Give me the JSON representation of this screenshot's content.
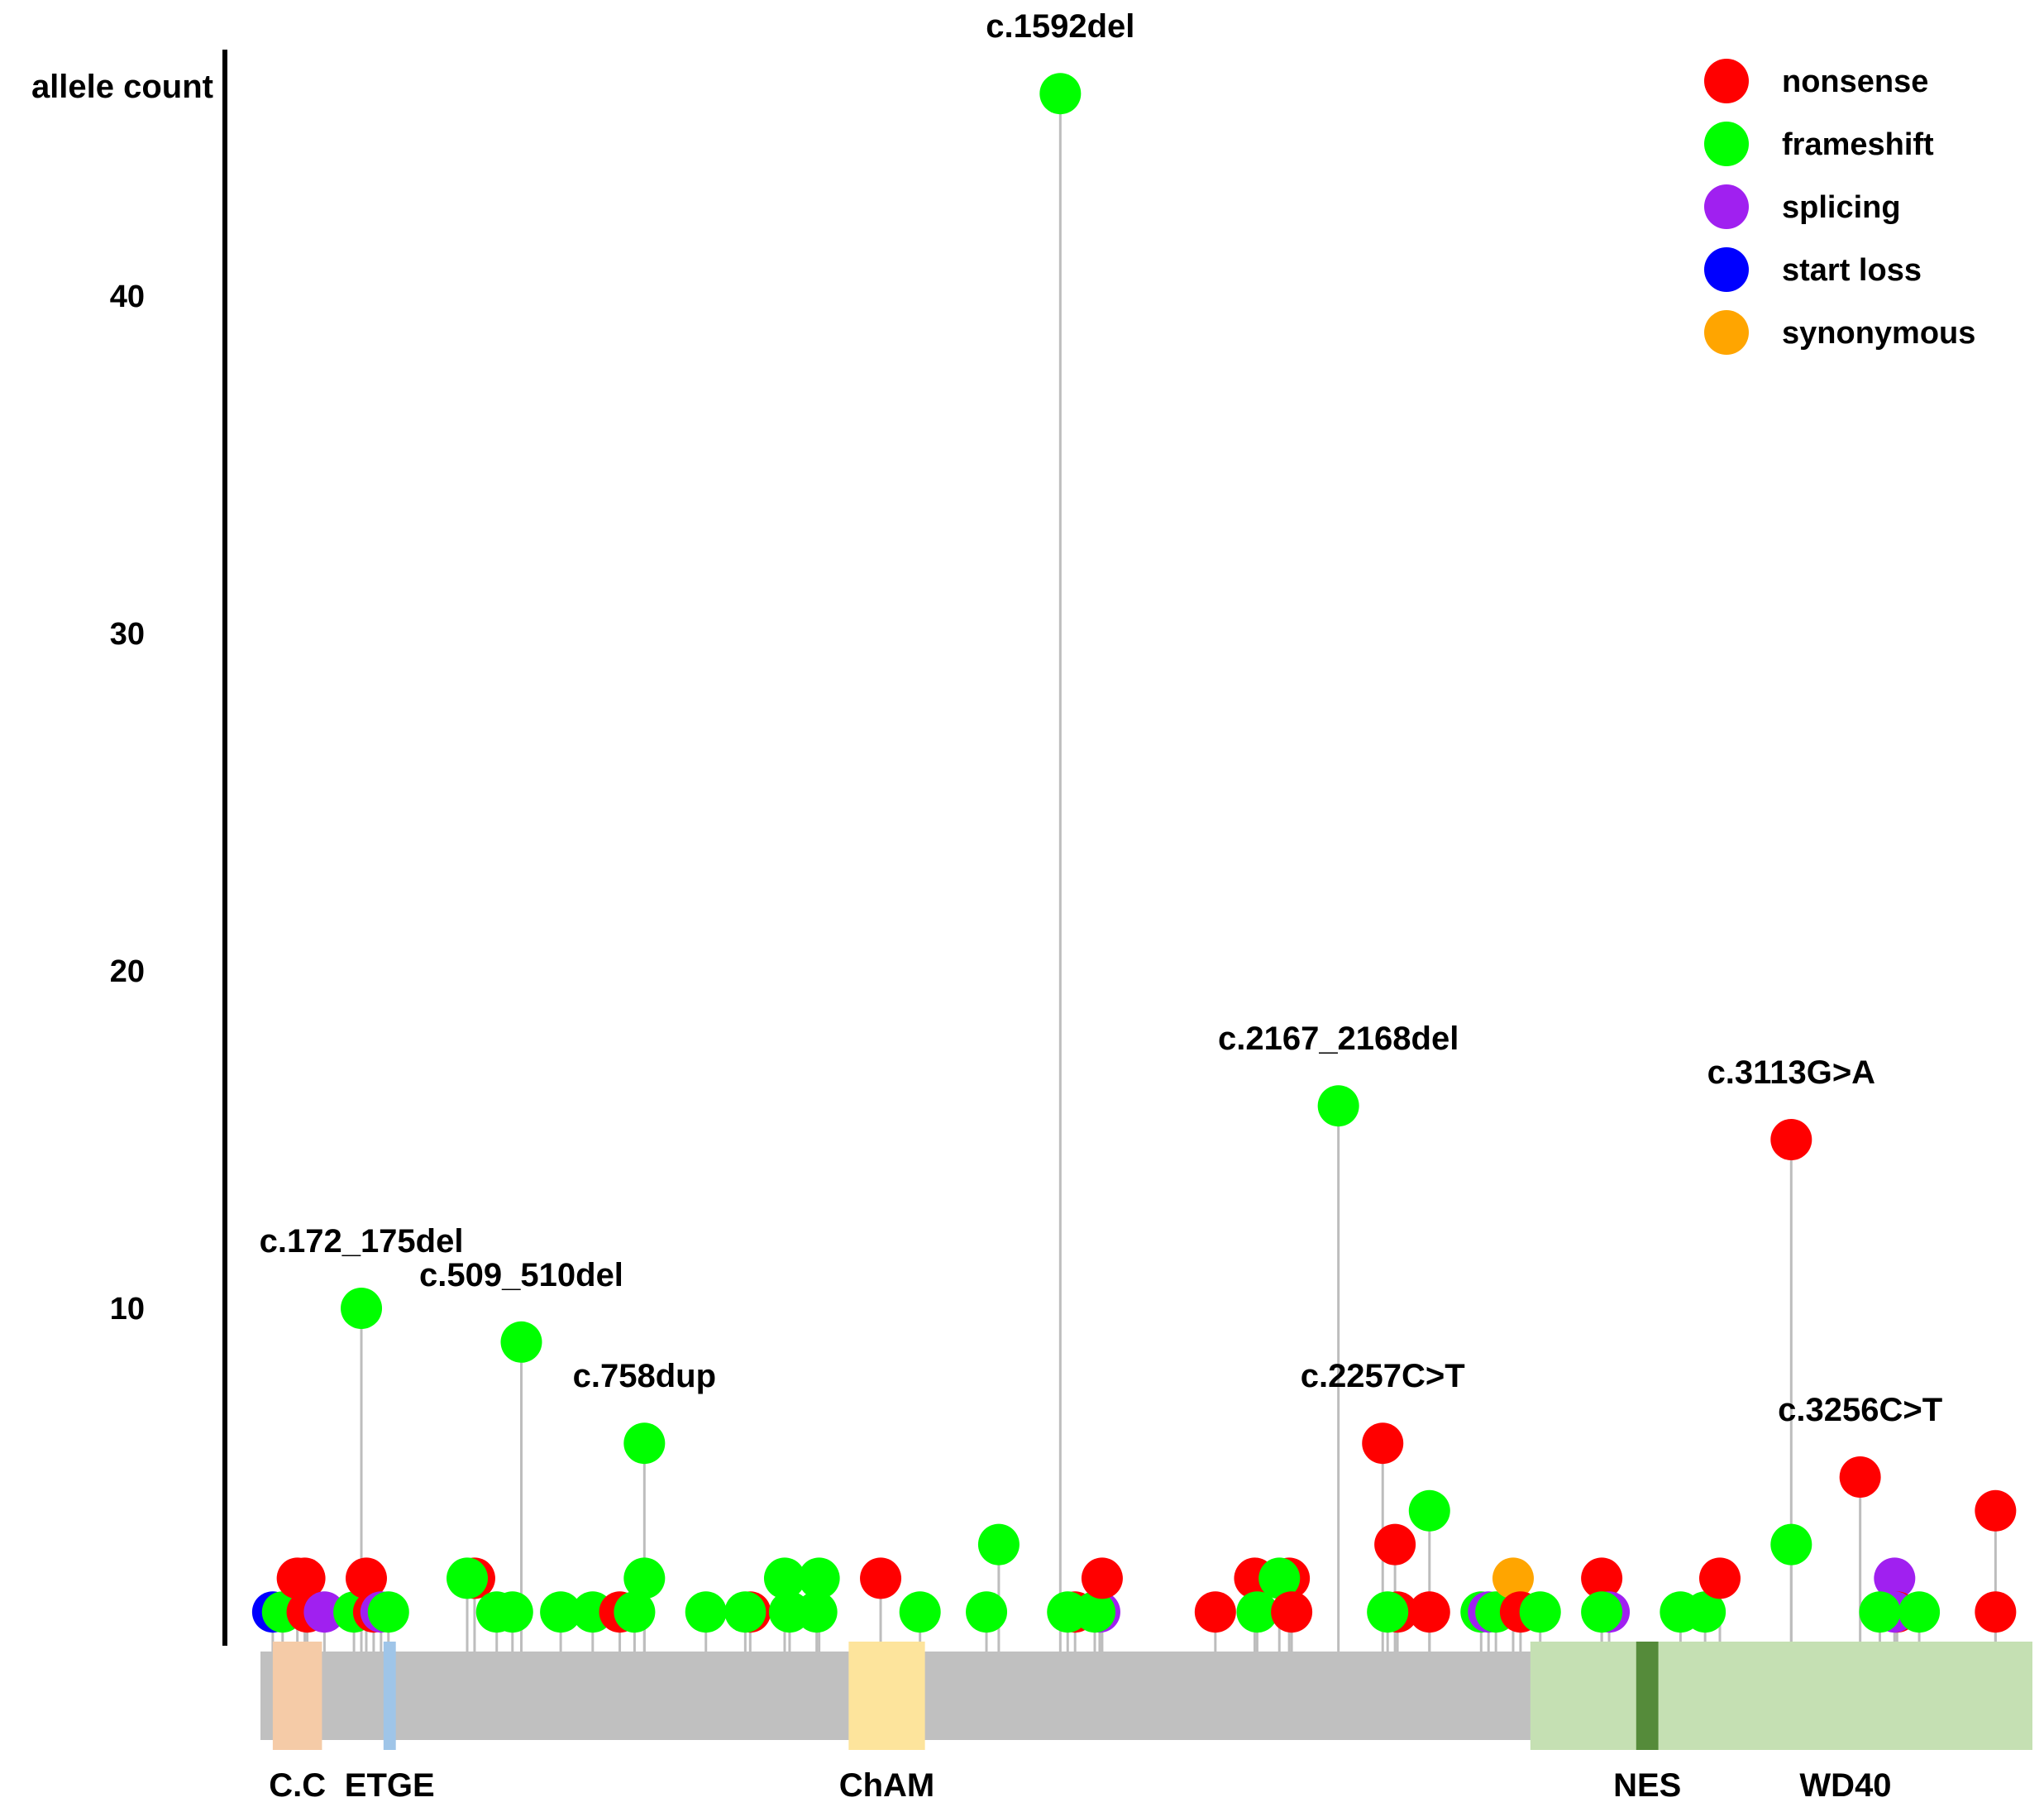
{
  "chart_data": {
    "type": "lollipop",
    "ylabel": "allele count",
    "yticks": [
      10,
      20,
      30,
      40
    ],
    "ylim": [
      0,
      47
    ],
    "xlim": [
      0,
      3600
    ],
    "legend_position": "top-right",
    "colors": {
      "nonsense": "#ff0000",
      "frameshift": "#00ff00",
      "splicing": "#a020f0",
      "start loss": "#0000ff",
      "synonymous": "#ffa500"
    },
    "legend": [
      {
        "name": "nonsense",
        "color": "#ff0000"
      },
      {
        "name": "frameshift",
        "color": "#00ff00"
      },
      {
        "name": "splicing",
        "color": "#a020f0"
      },
      {
        "name": "start loss",
        "color": "#0000ff"
      },
      {
        "name": "synonymous",
        "color": "#ffa500"
      }
    ],
    "domains": [
      {
        "name": "C.C",
        "start": 25,
        "end": 125,
        "color": "#f5cba7"
      },
      {
        "name": "ETGE",
        "start": 250,
        "end": 275,
        "color": "#9fc5e8"
      },
      {
        "name": "ChAM",
        "start": 1195,
        "end": 1350,
        "color": "#fde49c"
      },
      {
        "name": "NES",
        "start": 2795,
        "end": 2840,
        "color": "#558b3a"
      },
      {
        "name": "WD40",
        "start": 2580,
        "end": 3600,
        "color": "#c5e0b3"
      }
    ],
    "points": [
      {
        "x": 25,
        "y": 1,
        "type": "start loss"
      },
      {
        "x": 45,
        "y": 1,
        "type": "frameshift"
      },
      {
        "x": 75,
        "y": 2,
        "type": "nonsense"
      },
      {
        "x": 90,
        "y": 2,
        "type": "nonsense"
      },
      {
        "x": 95,
        "y": 1,
        "type": "nonsense"
      },
      {
        "x": 130,
        "y": 1,
        "type": "splicing"
      },
      {
        "x": 190,
        "y": 1,
        "type": "frameshift"
      },
      {
        "x": 205,
        "y": 10,
        "type": "frameshift",
        "label": "c.172_175del"
      },
      {
        "x": 215,
        "y": 2,
        "type": "nonsense"
      },
      {
        "x": 230,
        "y": 1,
        "type": "nonsense"
      },
      {
        "x": 245,
        "y": 1,
        "type": "splicing"
      },
      {
        "x": 260,
        "y": 1,
        "type": "frameshift"
      },
      {
        "x": 435,
        "y": 2,
        "type": "nonsense"
      },
      {
        "x": 420,
        "y": 2,
        "type": "frameshift"
      },
      {
        "x": 480,
        "y": 1,
        "type": "frameshift"
      },
      {
        "x": 512,
        "y": 1,
        "type": "frameshift"
      },
      {
        "x": 530,
        "y": 9,
        "type": "frameshift",
        "label": "c.509_510del"
      },
      {
        "x": 610,
        "y": 1,
        "type": "frameshift"
      },
      {
        "x": 675,
        "y": 1,
        "type": "frameshift"
      },
      {
        "x": 730,
        "y": 1,
        "type": "nonsense"
      },
      {
        "x": 760,
        "y": 1,
        "type": "frameshift"
      },
      {
        "x": 780,
        "y": 6,
        "type": "frameshift",
        "label": "c.758dup"
      },
      {
        "x": 780,
        "y": 2,
        "type": "frameshift"
      },
      {
        "x": 905,
        "y": 1,
        "type": "frameshift"
      },
      {
        "x": 995,
        "y": 1,
        "type": "nonsense"
      },
      {
        "x": 985,
        "y": 1,
        "type": "frameshift"
      },
      {
        "x": 1065,
        "y": 2,
        "type": "frameshift"
      },
      {
        "x": 1075,
        "y": 1,
        "type": "frameshift"
      },
      {
        "x": 1135,
        "y": 2,
        "type": "frameshift"
      },
      {
        "x": 1130,
        "y": 1,
        "type": "frameshift"
      },
      {
        "x": 1260,
        "y": 2,
        "type": "nonsense"
      },
      {
        "x": 1340,
        "y": 1,
        "type": "frameshift"
      },
      {
        "x": 1475,
        "y": 1,
        "type": "frameshift"
      },
      {
        "x": 1500,
        "y": 3,
        "type": "frameshift"
      },
      {
        "x": 1625,
        "y": 46,
        "type": "frameshift",
        "label": "c.1592del"
      },
      {
        "x": 1655,
        "y": 1,
        "type": "nonsense"
      },
      {
        "x": 1640,
        "y": 1,
        "type": "frameshift"
      },
      {
        "x": 1705,
        "y": 1,
        "type": "splicing"
      },
      {
        "x": 1695,
        "y": 1,
        "type": "frameshift"
      },
      {
        "x": 1710,
        "y": 2,
        "type": "nonsense"
      },
      {
        "x": 1940,
        "y": 1,
        "type": "nonsense"
      },
      {
        "x": 2020,
        "y": 2,
        "type": "nonsense"
      },
      {
        "x": 2025,
        "y": 1,
        "type": "frameshift"
      },
      {
        "x": 2090,
        "y": 2,
        "type": "nonsense"
      },
      {
        "x": 2070,
        "y": 2,
        "type": "frameshift"
      },
      {
        "x": 2095,
        "y": 1,
        "type": "nonsense"
      },
      {
        "x": 2190,
        "y": 16,
        "type": "frameshift",
        "label": "c.2167_2168del"
      },
      {
        "x": 2280,
        "y": 6,
        "type": "nonsense",
        "label": "c.2257C>T"
      },
      {
        "x": 2310,
        "y": 1,
        "type": "nonsense"
      },
      {
        "x": 2305,
        "y": 3,
        "type": "nonsense"
      },
      {
        "x": 2290,
        "y": 1,
        "type": "frameshift"
      },
      {
        "x": 2375,
        "y": 4,
        "type": "frameshift"
      },
      {
        "x": 2375,
        "y": 1,
        "type": "nonsense"
      },
      {
        "x": 2480,
        "y": 1,
        "type": "frameshift"
      },
      {
        "x": 2495,
        "y": 1,
        "type": "splicing"
      },
      {
        "x": 2510,
        "y": 1,
        "type": "frameshift"
      },
      {
        "x": 2545,
        "y": 2,
        "type": "synonymous"
      },
      {
        "x": 2560,
        "y": 1,
        "type": "nonsense"
      },
      {
        "x": 2600,
        "y": 1,
        "type": "frameshift"
      },
      {
        "x": 2725,
        "y": 2,
        "type": "nonsense"
      },
      {
        "x": 2740,
        "y": 1,
        "type": "splicing"
      },
      {
        "x": 2725,
        "y": 1,
        "type": "frameshift"
      },
      {
        "x": 2885,
        "y": 1,
        "type": "frameshift"
      },
      {
        "x": 2935,
        "y": 1,
        "type": "frameshift"
      },
      {
        "x": 2965,
        "y": 2,
        "type": "nonsense"
      },
      {
        "x": 3110,
        "y": 15,
        "type": "nonsense",
        "label": "c.3113G>A"
      },
      {
        "x": 3110,
        "y": 3,
        "type": "frameshift"
      },
      {
        "x": 3250,
        "y": 5,
        "type": "nonsense",
        "label": "c.3256C>T"
      },
      {
        "x": 3320,
        "y": 2,
        "type": "splicing"
      },
      {
        "x": 3325,
        "y": 1,
        "type": "nonsense"
      },
      {
        "x": 3320,
        "y": 1,
        "type": "splicing"
      },
      {
        "x": 3290,
        "y": 1,
        "type": "frameshift"
      },
      {
        "x": 3370,
        "y": 1,
        "type": "frameshift"
      },
      {
        "x": 3525,
        "y": 4,
        "type": "nonsense"
      },
      {
        "x": 3525,
        "y": 1,
        "type": "nonsense"
      }
    ]
  }
}
